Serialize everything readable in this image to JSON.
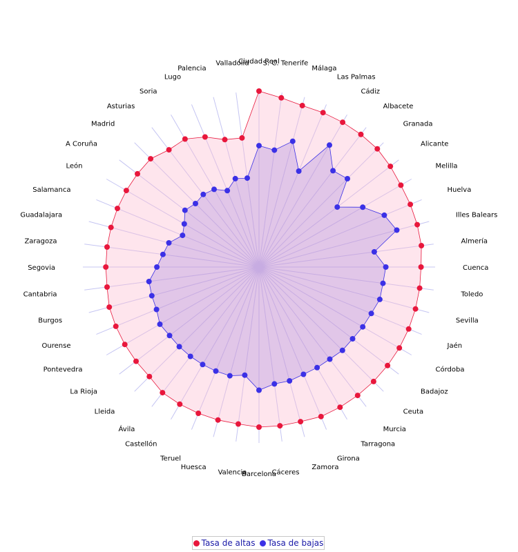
{
  "chart_data": {
    "type": "radar",
    "categories": [
      "Ciudad Real",
      "S. C. Tenerife",
      "Málaga",
      "Las Palmas",
      "Cádiz",
      "Albacete",
      "Granada",
      "Alicante",
      "Melilla",
      "Huelva",
      "Illes Balears",
      "Almería",
      "Cuenca",
      "Toledo",
      "Sevilla",
      "Jaén",
      "Córdoba",
      "Badajoz",
      "Ceuta",
      "Murcia",
      "Tarragona",
      "Girona",
      "Zamora",
      "Cáceres",
      "Barcelona",
      "Valencia",
      "Huesca",
      "Teruel",
      "Castellón",
      "Ávila",
      "Lleida",
      "La Rioja",
      "Pontevedra",
      "Ourense",
      "Burgos",
      "Cantabria",
      "Segovia",
      "Zaragoza",
      "Guadalajara",
      "Salamanca",
      "León",
      "A Coruña",
      "Madrid",
      "Asturias",
      "Soria",
      "Lugo",
      "Palencia",
      "Valladolid"
    ],
    "series": [
      {
        "name": "Tasa de altas",
        "color": "#e8173c",
        "values": [
          100,
          97,
          95,
          95,
          95,
          95,
          95,
          94,
          93,
          93,
          93,
          93,
          92,
          92,
          92,
          92,
          92,
          92,
          92,
          92,
          92,
          92,
          91,
          91,
          91,
          90,
          90,
          90,
          90,
          90,
          88,
          88,
          88,
          88,
          88,
          87,
          87,
          87,
          87,
          87,
          87,
          87,
          87,
          84,
          84,
          80,
          75,
          74
        ]
      },
      {
        "name": "Tasa de bajas",
        "color": "#3b31e6",
        "values": [
          69,
          67,
          74,
          59,
          80,
          69,
          71,
          56,
          68,
          77,
          81,
          66,
          72,
          71,
          71,
          69,
          68,
          67,
          67,
          66,
          66,
          66,
          67,
          67,
          70,
          62,
          64,
          64,
          64,
          64,
          64,
          64,
          65,
          63,
          63,
          63,
          58,
          55,
          53,
          47,
          49,
          53,
          51,
          52,
          51,
          47,
          52,
          51
        ]
      }
    ],
    "rmax": 100,
    "grid": true,
    "legend_position": "bottom-center"
  },
  "legend": {
    "items": [
      {
        "label": "Tasa de altas",
        "color": "#e8173c"
      },
      {
        "label": "Tasa de bajas",
        "color": "#3b31e6"
      }
    ]
  }
}
